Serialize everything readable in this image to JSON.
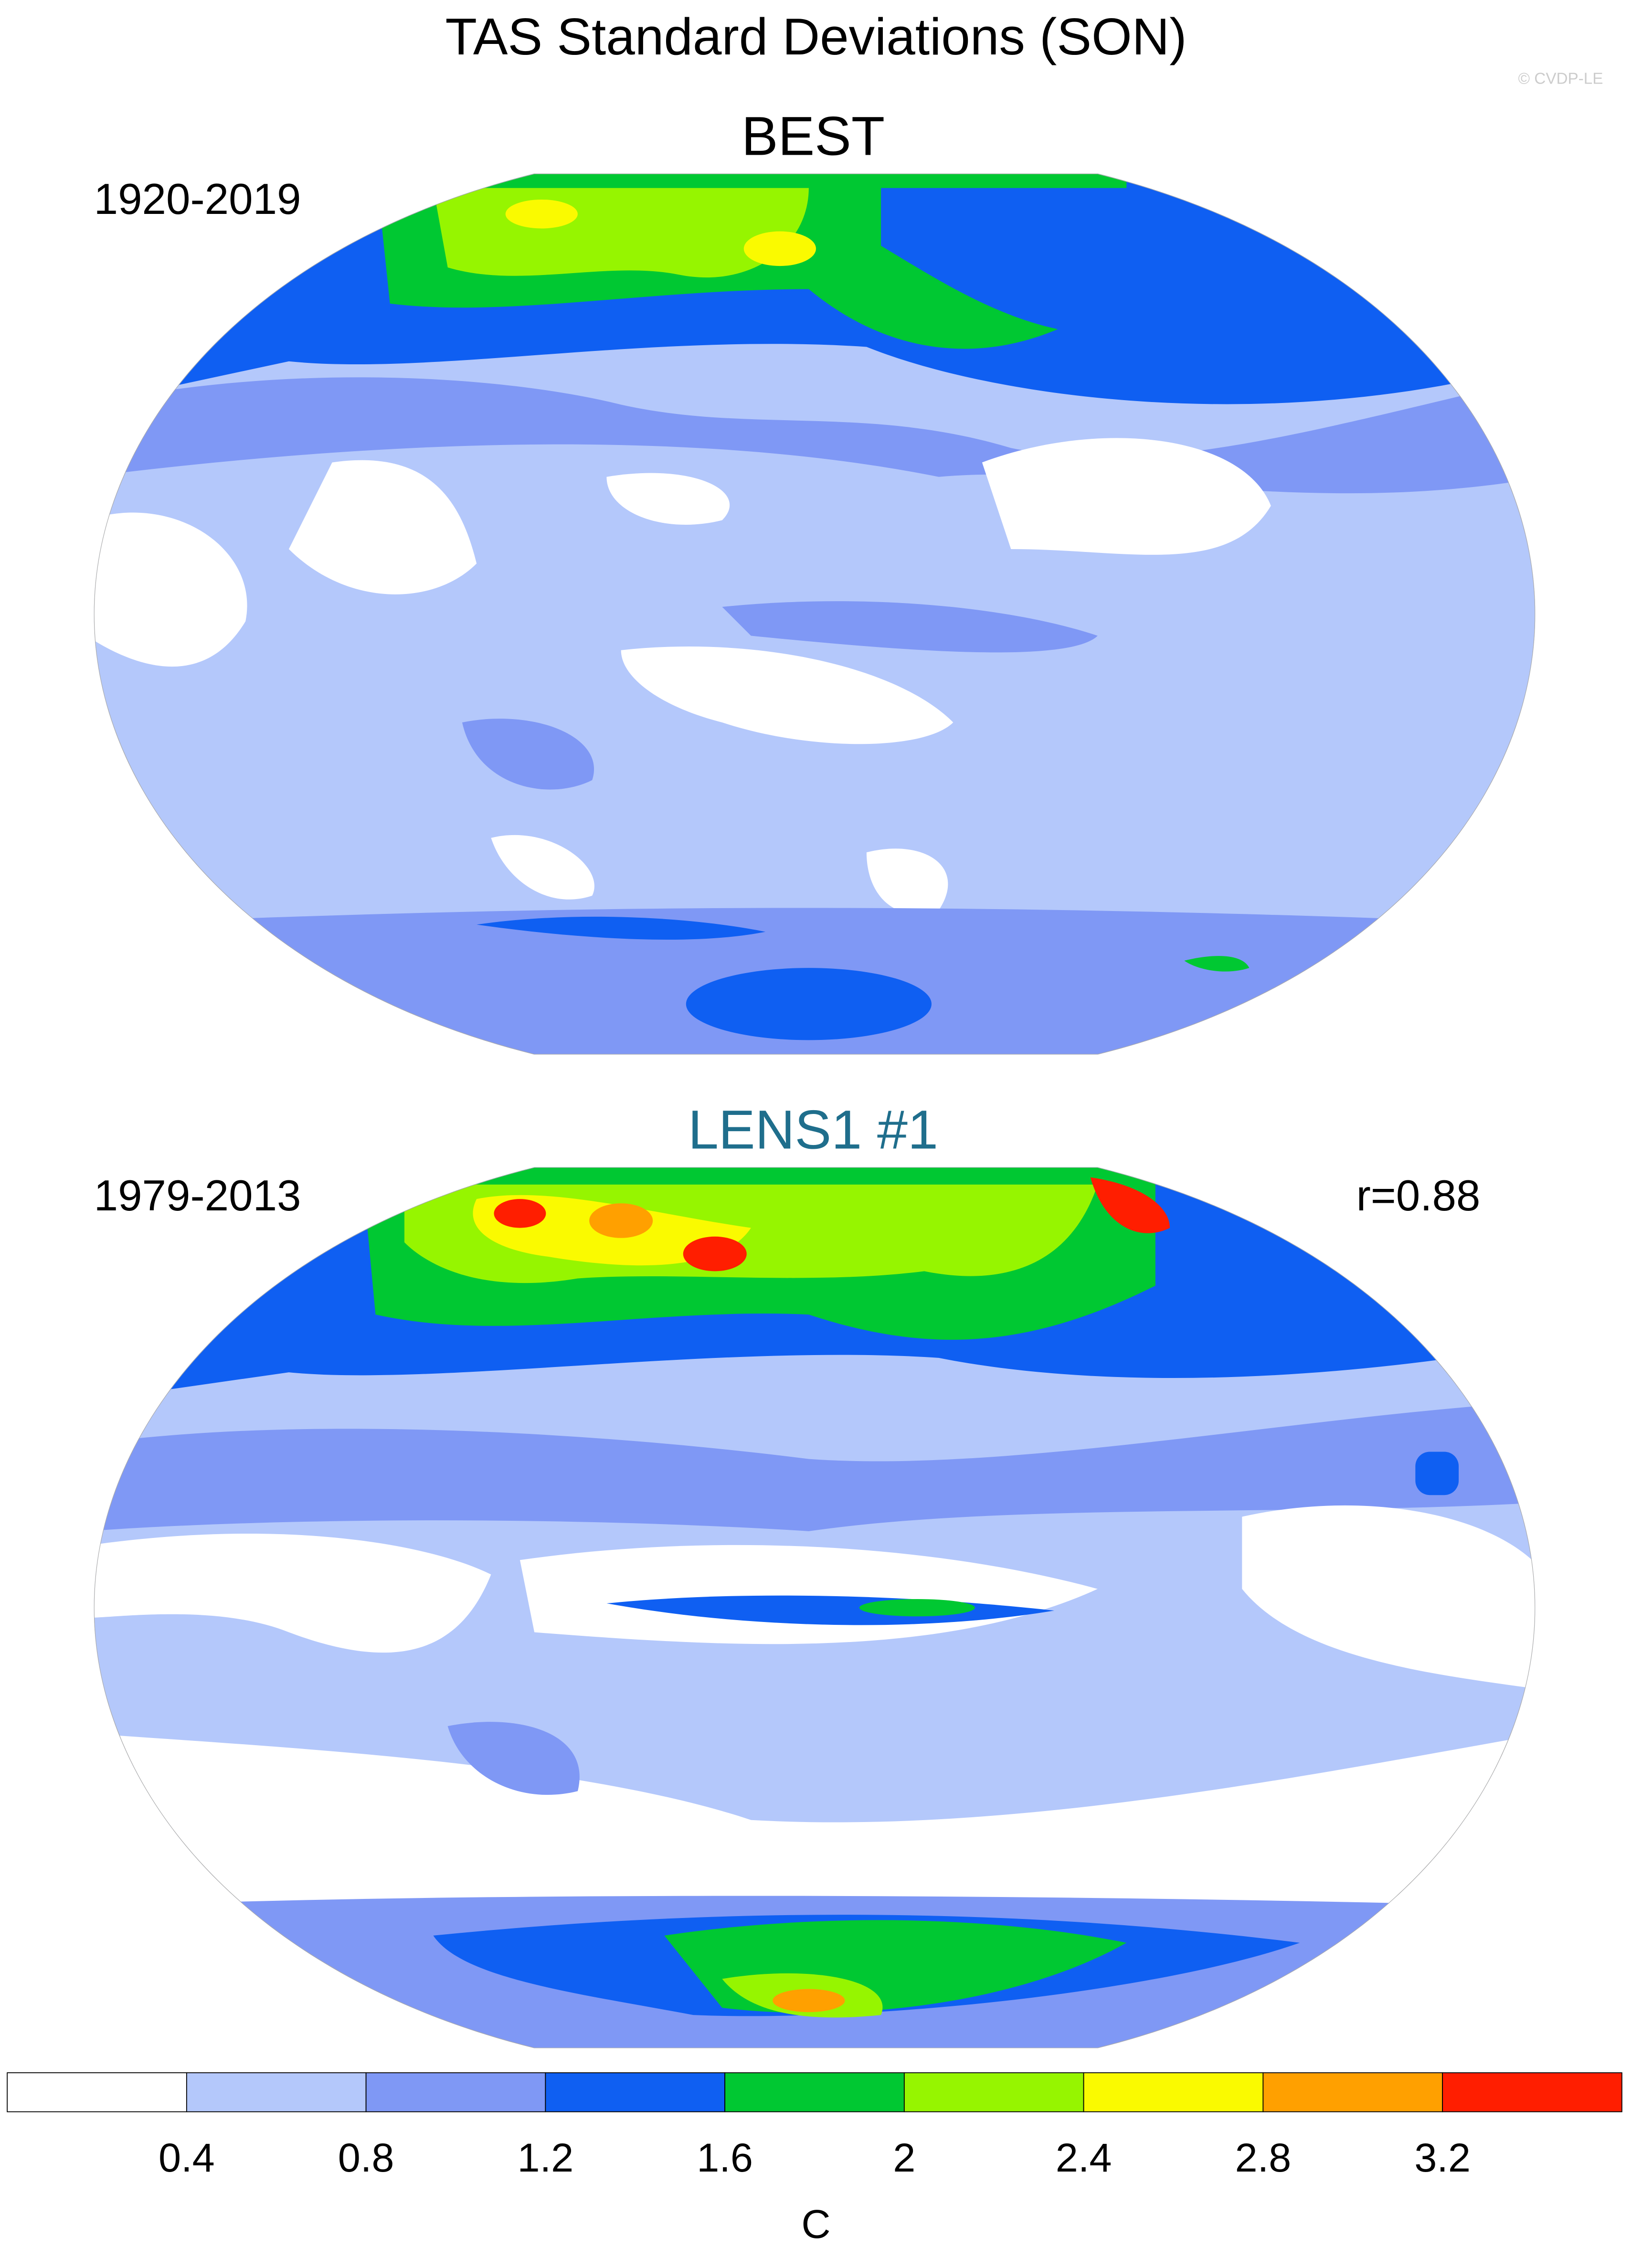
{
  "title": "TAS Standard Deviations (SON)",
  "watermark": "© CVDP-LE",
  "panels": [
    {
      "title": "BEST",
      "period": "1920-2019"
    },
    {
      "title": "LENS1 #1",
      "period": "1979-2013",
      "correlation": "r=0.88"
    }
  ],
  "colorbar": {
    "label": "C",
    "ticks": [
      0.4,
      0.8,
      1.2,
      1.6,
      2,
      2.4,
      2.8,
      3.2
    ],
    "colors": [
      "#ffffff",
      "#b4c8fb",
      "#7f98f5",
      "#0f5ff2",
      "#00c832",
      "#96f500",
      "#fafa00",
      "#ffa000",
      "#ff1e00"
    ]
  }
}
